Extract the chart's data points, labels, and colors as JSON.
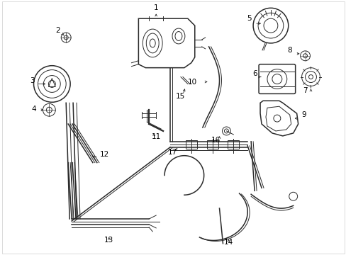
{
  "background_color": "#ffffff",
  "line_color": "#2a2a2a",
  "text_color": "#000000",
  "fig_width": 4.89,
  "fig_height": 3.6,
  "dpi": 100,
  "border_color": "#cccccc"
}
